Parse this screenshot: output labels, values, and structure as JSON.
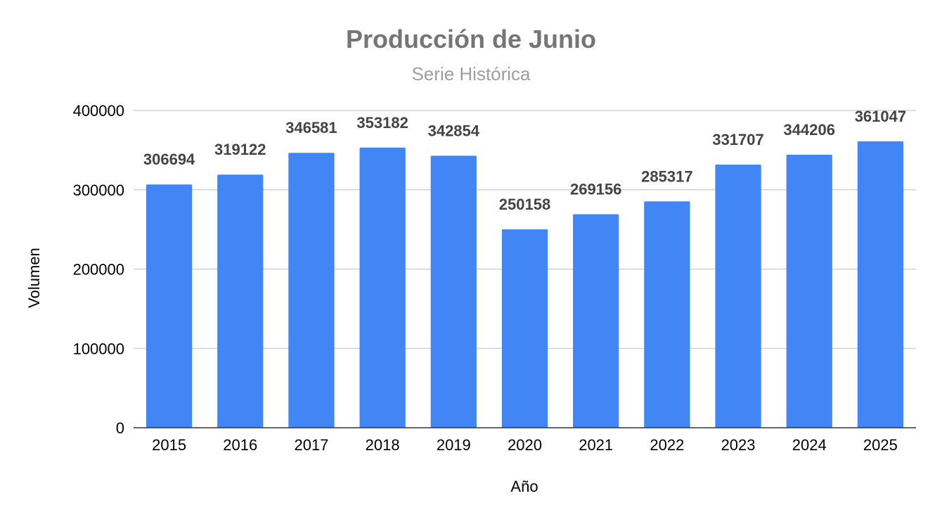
{
  "chart_data": {
    "type": "bar",
    "title": "Producción de Junio",
    "subtitle": "Serie Histórica",
    "xlabel": "Año",
    "ylabel": "Volumen",
    "categories": [
      "2015",
      "2016",
      "2017",
      "2018",
      "2019",
      "2020",
      "2021",
      "2022",
      "2023",
      "2024",
      "2025"
    ],
    "values": [
      306694,
      319122,
      346581,
      353182,
      342854,
      250158,
      269156,
      285317,
      331707,
      344206,
      361047
    ],
    "ylim": [
      0,
      400000
    ],
    "yticks": [
      "0",
      "100000",
      "200000",
      "300000",
      "400000"
    ],
    "grid": true,
    "legend": "none",
    "bar_color": "#4285f4",
    "data_labels": true
  }
}
